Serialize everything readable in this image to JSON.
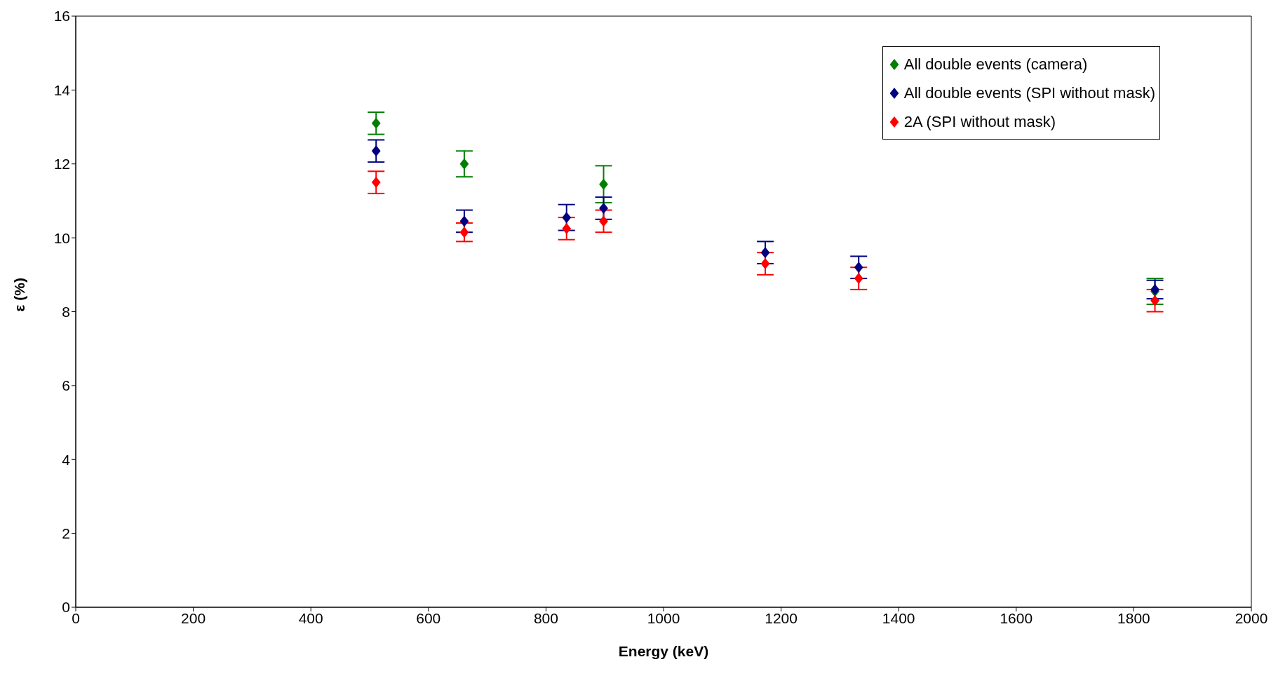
{
  "chart_data": {
    "type": "scatter",
    "xlabel": "Energy (keV)",
    "ylabel": "ε (%)",
    "xlim": [
      0,
      2000
    ],
    "xticks": [
      0,
      200,
      400,
      600,
      800,
      1000,
      1200,
      1400,
      1600,
      1800,
      2000
    ],
    "ylim": [
      0,
      16
    ],
    "yticks": [
      0,
      2,
      4,
      6,
      8,
      10,
      12,
      14,
      16
    ],
    "grid": false,
    "legend": "top right",
    "marker": "diamond",
    "series": [
      {
        "name": "All double events (camera)",
        "color": "#008000",
        "x": [
          511,
          661,
          898,
          1836
        ],
        "values": [
          13.1,
          12.0,
          11.45,
          8.55
        ],
        "errors": [
          0.3,
          0.35,
          0.5,
          0.35
        ]
      },
      {
        "name": "All double events (SPI without mask)",
        "color": "#000080",
        "x": [
          511,
          661,
          835,
          898,
          1173,
          1332,
          1836
        ],
        "values": [
          12.35,
          10.45,
          10.55,
          10.8,
          9.6,
          9.2,
          8.6
        ],
        "errors": [
          0.3,
          0.3,
          0.35,
          0.3,
          0.3,
          0.3,
          0.25
        ]
      },
      {
        "name": "2A (SPI without mask)",
        "color": "#ff0000",
        "x": [
          511,
          661,
          835,
          898,
          1173,
          1332,
          1836
        ],
        "values": [
          11.5,
          10.15,
          10.25,
          10.45,
          9.3,
          8.9,
          8.3
        ],
        "errors": [
          0.3,
          0.25,
          0.3,
          0.3,
          0.3,
          0.3,
          0.3
        ]
      }
    ]
  }
}
